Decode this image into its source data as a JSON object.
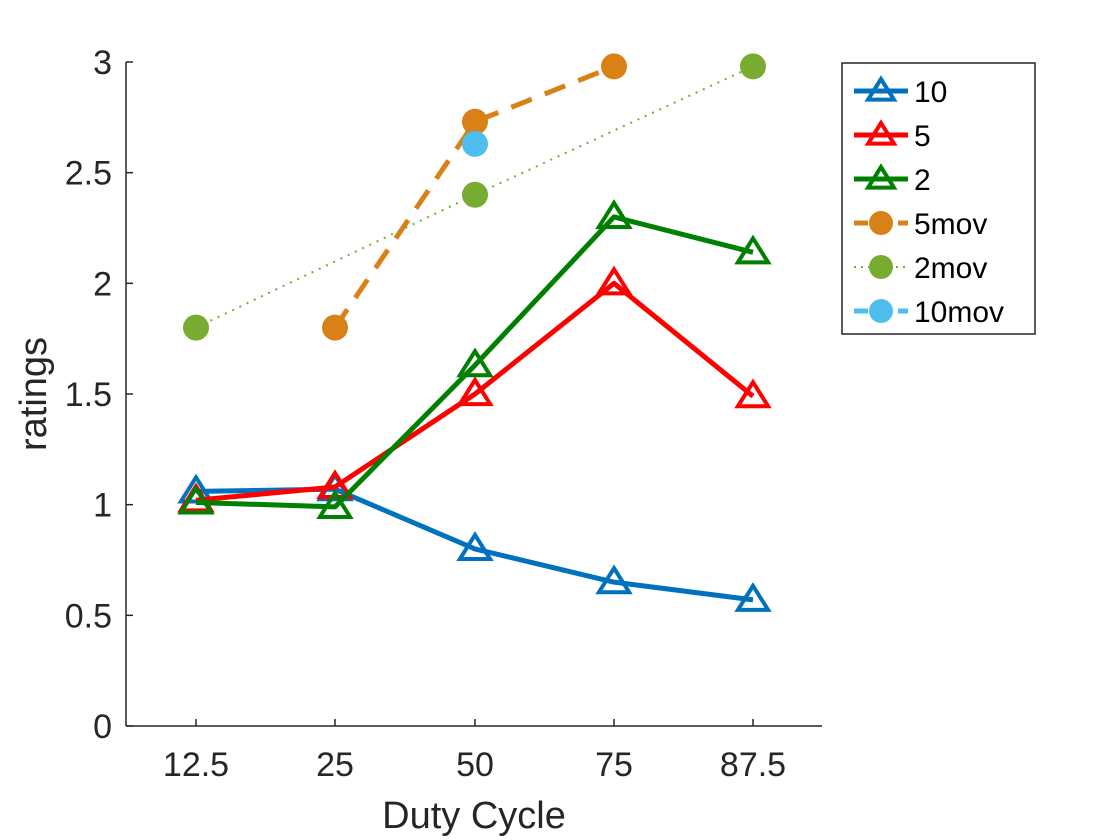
{
  "chart_data": {
    "type": "line",
    "title": "",
    "xlabel": "Duty Cycle",
    "ylabel": "ratings",
    "categories": [
      "12.5",
      "25",
      "50",
      "75",
      "87.5"
    ],
    "ylim": [
      0,
      3
    ],
    "yticks": [
      "0",
      "0.5",
      "1",
      "1.5",
      "2",
      "2.5",
      "3"
    ],
    "legend_position": "top-right outside",
    "series": [
      {
        "name": "10",
        "color": "#0072BD",
        "marker": "triangle",
        "line": "solid",
        "values": [
          1.06,
          1.07,
          0.8,
          0.65,
          0.57
        ]
      },
      {
        "name": "5",
        "color": "#FF0000",
        "marker": "triangle",
        "line": "solid",
        "values": [
          1.02,
          1.08,
          1.5,
          2.0,
          1.49
        ]
      },
      {
        "name": "2",
        "color": "#008000",
        "marker": "triangle",
        "line": "solid",
        "values": [
          1.01,
          0.99,
          1.63,
          2.3,
          2.14
        ]
      },
      {
        "name": "5mov",
        "color": "#D98016",
        "marker": "circle",
        "line": "dashed",
        "values": [
          null,
          1.8,
          2.73,
          2.98,
          null
        ]
      },
      {
        "name": "2mov",
        "color": "#77AC30",
        "marker": "circle",
        "line": "dotted",
        "values": [
          1.8,
          null,
          2.4,
          null,
          2.98
        ]
      },
      {
        "name": "10mov",
        "color": "#4DBEEE",
        "marker": "circle",
        "line": "dashed",
        "values": [
          null,
          null,
          2.63,
          null,
          null
        ]
      }
    ]
  }
}
